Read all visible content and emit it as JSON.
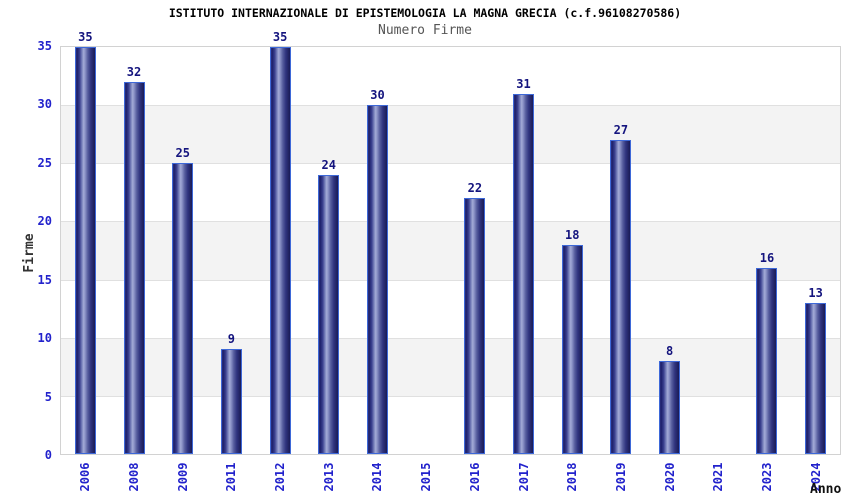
{
  "header": {
    "title": "ISTITUTO INTERNAZIONALE DI EPISTEMOLOGIA LA MAGNA GRECIA (c.f.96108270586)"
  },
  "chart_data": {
    "type": "bar",
    "title": "Numero Firme",
    "xlabel": "Anno",
    "ylabel": "Firme",
    "categories": [
      "2006",
      "2008",
      "2009",
      "2011",
      "2012",
      "2013",
      "2014",
      "2015",
      "2016",
      "2017",
      "2018",
      "2019",
      "2020",
      "2021",
      "2023",
      "2024"
    ],
    "values": [
      35,
      32,
      25,
      9,
      35,
      24,
      30,
      0,
      22,
      31,
      18,
      27,
      8,
      0,
      16,
      13
    ],
    "ylim": [
      0,
      35
    ],
    "ytick_step": 5,
    "yticks": [
      0,
      5,
      10,
      15,
      20,
      25,
      30,
      35
    ],
    "grid": "alternating horizontal bands every 5 units, light gridlines",
    "legend": "none",
    "bar_value_labels_visible": true,
    "colors": {
      "title": "#000000",
      "subtitle": "#555555",
      "tick_label": "#2222cc",
      "value_label": "#14147e",
      "axis_title": "#333333",
      "bar_border": "#3d68d8",
      "bar_dark": "#1e216c",
      "bar_light": "#a4abd7",
      "band": "#f3f3f3",
      "gridline": "#e0e0e0",
      "plot_border": "#d2d2d2",
      "background": "#ffffff"
    }
  }
}
